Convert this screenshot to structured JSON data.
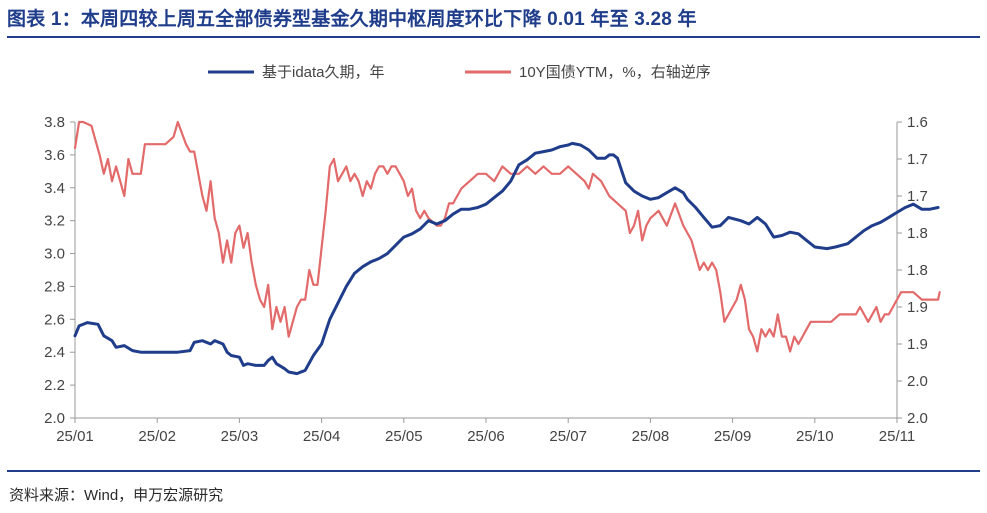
{
  "header": {
    "title": "图表 1：本周四较上周五全部债券型基金久期中枢周度环比下降 0.01 年至 3.28 年"
  },
  "footer": {
    "source": "资料来源：Wind，申万宏源研究"
  },
  "colors": {
    "brand": "#1f3d8a",
    "series_duration": "#1f3d8a",
    "series_ytm": "#e36a6a",
    "axis": "#9a9a9a"
  },
  "chart_data": {
    "type": "line",
    "legend_position": "top-center",
    "grid": false,
    "x_tick_labels": [
      "25/01",
      "25/02",
      "25/03",
      "25/04",
      "25/05",
      "25/06",
      "25/07",
      "25/08",
      "25/09",
      "25/10",
      "25/11"
    ],
    "left_axis": {
      "ylim": [
        2.0,
        3.8
      ],
      "ticks": [
        2.0,
        2.2,
        2.4,
        2.6,
        2.8,
        3.0,
        3.2,
        3.4,
        3.6,
        3.8
      ],
      "tick_labels": [
        "2.0",
        "2.2",
        "2.4",
        "2.6",
        "2.8",
        "3.0",
        "3.2",
        "3.4",
        "3.6",
        "3.8"
      ]
    },
    "right_axis": {
      "inverted": true,
      "ylim": [
        1.6,
        2.0
      ],
      "ticks": [
        1.6,
        1.65,
        1.7,
        1.75,
        1.8,
        1.85,
        1.9,
        1.95,
        2.0
      ],
      "tick_labels": [
        "1.6",
        "1.7",
        "1.7",
        "1.8",
        "1.8",
        "1.9",
        "1.9",
        "2.0",
        "2.0"
      ]
    },
    "series": [
      {
        "name": "基于idata久期，年",
        "axis": "left",
        "points": [
          [
            0.0,
            2.5
          ],
          [
            0.05,
            2.56
          ],
          [
            0.15,
            2.58
          ],
          [
            0.28,
            2.57
          ],
          [
            0.35,
            2.5
          ],
          [
            0.45,
            2.47
          ],
          [
            0.5,
            2.43
          ],
          [
            0.6,
            2.44
          ],
          [
            0.7,
            2.41
          ],
          [
            0.8,
            2.4
          ],
          [
            0.9,
            2.4
          ],
          [
            1.0,
            2.4
          ],
          [
            1.25,
            2.4
          ],
          [
            1.4,
            2.41
          ],
          [
            1.45,
            2.46
          ],
          [
            1.55,
            2.47
          ],
          [
            1.65,
            2.45
          ],
          [
            1.7,
            2.47
          ],
          [
            1.8,
            2.45
          ],
          [
            1.85,
            2.4
          ],
          [
            1.9,
            2.38
          ],
          [
            2.0,
            2.37
          ],
          [
            2.05,
            2.32
          ],
          [
            2.1,
            2.33
          ],
          [
            2.2,
            2.32
          ],
          [
            2.3,
            2.32
          ],
          [
            2.35,
            2.35
          ],
          [
            2.4,
            2.37
          ],
          [
            2.45,
            2.33
          ],
          [
            2.55,
            2.3
          ],
          [
            2.6,
            2.28
          ],
          [
            2.7,
            2.27
          ],
          [
            2.8,
            2.29
          ],
          [
            2.9,
            2.38
          ],
          [
            3.0,
            2.45
          ],
          [
            3.1,
            2.6
          ],
          [
            3.2,
            2.7
          ],
          [
            3.3,
            2.8
          ],
          [
            3.4,
            2.88
          ],
          [
            3.5,
            2.92
          ],
          [
            3.6,
            2.95
          ],
          [
            3.7,
            2.97
          ],
          [
            3.8,
            3.0
          ],
          [
            3.9,
            3.05
          ],
          [
            4.0,
            3.1
          ],
          [
            4.1,
            3.12
          ],
          [
            4.2,
            3.15
          ],
          [
            4.3,
            3.2
          ],
          [
            4.4,
            3.18
          ],
          [
            4.5,
            3.2
          ],
          [
            4.6,
            3.24
          ],
          [
            4.7,
            3.27
          ],
          [
            4.8,
            3.27
          ],
          [
            4.9,
            3.28
          ],
          [
            5.0,
            3.3
          ],
          [
            5.1,
            3.34
          ],
          [
            5.2,
            3.38
          ],
          [
            5.3,
            3.44
          ],
          [
            5.4,
            3.54
          ],
          [
            5.5,
            3.57
          ],
          [
            5.6,
            3.61
          ],
          [
            5.7,
            3.62
          ],
          [
            5.8,
            3.63
          ],
          [
            5.9,
            3.65
          ],
          [
            6.0,
            3.66
          ],
          [
            6.05,
            3.67
          ],
          [
            6.15,
            3.66
          ],
          [
            6.25,
            3.63
          ],
          [
            6.35,
            3.58
          ],
          [
            6.45,
            3.58
          ],
          [
            6.5,
            3.6
          ],
          [
            6.55,
            3.6
          ],
          [
            6.6,
            3.58
          ],
          [
            6.7,
            3.43
          ],
          [
            6.8,
            3.38
          ],
          [
            6.9,
            3.35
          ],
          [
            7.0,
            3.33
          ],
          [
            7.1,
            3.34
          ],
          [
            7.2,
            3.37
          ],
          [
            7.3,
            3.4
          ],
          [
            7.4,
            3.37
          ],
          [
            7.45,
            3.33
          ],
          [
            7.55,
            3.28
          ],
          [
            7.65,
            3.22
          ],
          [
            7.75,
            3.16
          ],
          [
            7.85,
            3.17
          ],
          [
            7.95,
            3.22
          ],
          [
            8.1,
            3.2
          ],
          [
            8.2,
            3.18
          ],
          [
            8.3,
            3.22
          ],
          [
            8.4,
            3.18
          ],
          [
            8.5,
            3.1
          ],
          [
            8.6,
            3.11
          ],
          [
            8.7,
            3.13
          ],
          [
            8.8,
            3.12
          ],
          [
            8.9,
            3.08
          ],
          [
            9.0,
            3.04
          ],
          [
            9.15,
            3.03
          ],
          [
            9.25,
            3.04
          ],
          [
            9.4,
            3.06
          ],
          [
            9.5,
            3.1
          ],
          [
            9.6,
            3.14
          ],
          [
            9.7,
            3.17
          ],
          [
            9.8,
            3.19
          ],
          [
            9.9,
            3.22
          ],
          [
            10.0,
            3.25
          ],
          [
            10.1,
            3.28
          ],
          [
            10.2,
            3.3
          ],
          [
            10.3,
            3.27
          ],
          [
            10.4,
            3.27
          ],
          [
            10.5,
            3.28
          ]
        ]
      },
      {
        "name": "10Y国债YTM，%，右轴逆序",
        "axis": "right",
        "points": [
          [
            0.0,
            1.635
          ],
          [
            0.05,
            1.6
          ],
          [
            0.1,
            1.6
          ],
          [
            0.2,
            1.605
          ],
          [
            0.3,
            1.645
          ],
          [
            0.35,
            1.67
          ],
          [
            0.4,
            1.65
          ],
          [
            0.45,
            1.68
          ],
          [
            0.5,
            1.66
          ],
          [
            0.6,
            1.7
          ],
          [
            0.65,
            1.65
          ],
          [
            0.7,
            1.67
          ],
          [
            0.8,
            1.67
          ],
          [
            0.85,
            1.63
          ],
          [
            1.0,
            1.63
          ],
          [
            1.1,
            1.63
          ],
          [
            1.2,
            1.62
          ],
          [
            1.25,
            1.6
          ],
          [
            1.3,
            1.615
          ],
          [
            1.35,
            1.63
          ],
          [
            1.4,
            1.64
          ],
          [
            1.45,
            1.64
          ],
          [
            1.55,
            1.7
          ],
          [
            1.6,
            1.72
          ],
          [
            1.65,
            1.68
          ],
          [
            1.7,
            1.73
          ],
          [
            1.75,
            1.75
          ],
          [
            1.8,
            1.79
          ],
          [
            1.85,
            1.76
          ],
          [
            1.9,
            1.79
          ],
          [
            1.95,
            1.75
          ],
          [
            2.0,
            1.74
          ],
          [
            2.05,
            1.77
          ],
          [
            2.1,
            1.75
          ],
          [
            2.15,
            1.79
          ],
          [
            2.2,
            1.82
          ],
          [
            2.25,
            1.84
          ],
          [
            2.3,
            1.85
          ],
          [
            2.35,
            1.82
          ],
          [
            2.4,
            1.88
          ],
          [
            2.45,
            1.85
          ],
          [
            2.5,
            1.87
          ],
          [
            2.55,
            1.85
          ],
          [
            2.6,
            1.89
          ],
          [
            2.65,
            1.87
          ],
          [
            2.7,
            1.85
          ],
          [
            2.75,
            1.84
          ],
          [
            2.8,
            1.84
          ],
          [
            2.85,
            1.8
          ],
          [
            2.9,
            1.82
          ],
          [
            2.95,
            1.82
          ],
          [
            3.0,
            1.77
          ],
          [
            3.05,
            1.72
          ],
          [
            3.1,
            1.66
          ],
          [
            3.15,
            1.65
          ],
          [
            3.2,
            1.68
          ],
          [
            3.25,
            1.67
          ],
          [
            3.3,
            1.66
          ],
          [
            3.35,
            1.68
          ],
          [
            3.4,
            1.67
          ],
          [
            3.45,
            1.68
          ],
          [
            3.5,
            1.7
          ],
          [
            3.55,
            1.68
          ],
          [
            3.6,
            1.69
          ],
          [
            3.65,
            1.67
          ],
          [
            3.7,
            1.66
          ],
          [
            3.75,
            1.66
          ],
          [
            3.8,
            1.67
          ],
          [
            3.85,
            1.66
          ],
          [
            3.9,
            1.66
          ],
          [
            4.0,
            1.68
          ],
          [
            4.05,
            1.7
          ],
          [
            4.1,
            1.69
          ],
          [
            4.15,
            1.72
          ],
          [
            4.2,
            1.73
          ],
          [
            4.25,
            1.72
          ],
          [
            4.3,
            1.73
          ],
          [
            4.4,
            1.74
          ],
          [
            4.45,
            1.74
          ],
          [
            4.5,
            1.73
          ],
          [
            4.55,
            1.71
          ],
          [
            4.6,
            1.71
          ],
          [
            4.7,
            1.69
          ],
          [
            4.8,
            1.68
          ],
          [
            4.9,
            1.67
          ],
          [
            5.0,
            1.67
          ],
          [
            5.1,
            1.68
          ],
          [
            5.2,
            1.66
          ],
          [
            5.3,
            1.67
          ],
          [
            5.4,
            1.67
          ],
          [
            5.5,
            1.66
          ],
          [
            5.6,
            1.67
          ],
          [
            5.7,
            1.66
          ],
          [
            5.8,
            1.67
          ],
          [
            5.9,
            1.67
          ],
          [
            6.0,
            1.66
          ],
          [
            6.1,
            1.67
          ],
          [
            6.2,
            1.68
          ],
          [
            6.25,
            1.69
          ],
          [
            6.3,
            1.67
          ],
          [
            6.4,
            1.68
          ],
          [
            6.5,
            1.7
          ],
          [
            6.6,
            1.71
          ],
          [
            6.7,
            1.72
          ],
          [
            6.75,
            1.75
          ],
          [
            6.8,
            1.74
          ],
          [
            6.85,
            1.72
          ],
          [
            6.9,
            1.76
          ],
          [
            6.95,
            1.74
          ],
          [
            7.0,
            1.73
          ],
          [
            7.1,
            1.72
          ],
          [
            7.2,
            1.74
          ],
          [
            7.3,
            1.71
          ],
          [
            7.4,
            1.74
          ],
          [
            7.45,
            1.75
          ],
          [
            7.5,
            1.76
          ],
          [
            7.55,
            1.78
          ],
          [
            7.6,
            1.8
          ],
          [
            7.65,
            1.79
          ],
          [
            7.7,
            1.8
          ],
          [
            7.75,
            1.79
          ],
          [
            7.8,
            1.8
          ],
          [
            7.85,
            1.83
          ],
          [
            7.9,
            1.87
          ],
          [
            7.95,
            1.86
          ],
          [
            8.0,
            1.85
          ],
          [
            8.05,
            1.84
          ],
          [
            8.1,
            1.82
          ],
          [
            8.15,
            1.84
          ],
          [
            8.2,
            1.88
          ],
          [
            8.25,
            1.89
          ],
          [
            8.3,
            1.91
          ],
          [
            8.35,
            1.88
          ],
          [
            8.4,
            1.89
          ],
          [
            8.45,
            1.88
          ],
          [
            8.5,
            1.89
          ],
          [
            8.55,
            1.86
          ],
          [
            8.6,
            1.89
          ],
          [
            8.65,
            1.89
          ],
          [
            8.7,
            1.91
          ],
          [
            8.75,
            1.89
          ],
          [
            8.8,
            1.9
          ],
          [
            8.85,
            1.89
          ],
          [
            8.9,
            1.88
          ],
          [
            8.95,
            1.87
          ],
          [
            9.0,
            1.87
          ],
          [
            9.1,
            1.87
          ],
          [
            9.2,
            1.87
          ],
          [
            9.3,
            1.86
          ],
          [
            9.4,
            1.86
          ],
          [
            9.5,
            1.86
          ],
          [
            9.55,
            1.85
          ],
          [
            9.6,
            1.86
          ],
          [
            9.65,
            1.87
          ],
          [
            9.7,
            1.86
          ],
          [
            9.75,
            1.85
          ],
          [
            9.8,
            1.87
          ],
          [
            9.85,
            1.86
          ],
          [
            9.9,
            1.86
          ],
          [
            9.95,
            1.85
          ],
          [
            10.0,
            1.84
          ],
          [
            10.05,
            1.83
          ],
          [
            10.1,
            1.83
          ],
          [
            10.15,
            1.83
          ],
          [
            10.2,
            1.83
          ],
          [
            10.3,
            1.84
          ],
          [
            10.4,
            1.84
          ],
          [
            10.5,
            1.84
          ],
          [
            10.52,
            1.83
          ]
        ]
      }
    ]
  }
}
